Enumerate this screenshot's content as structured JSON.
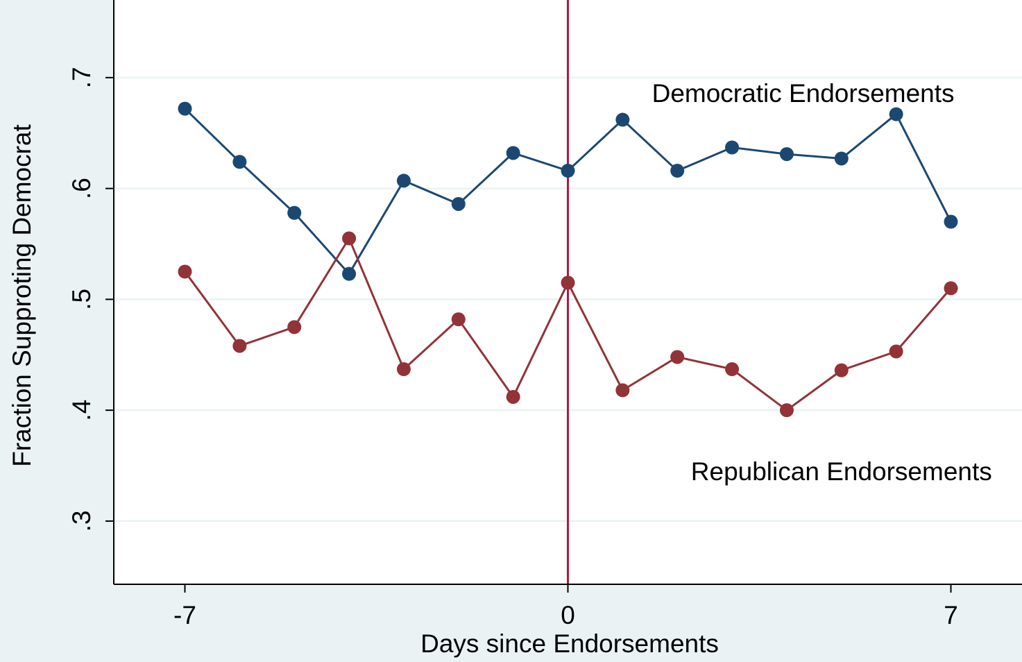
{
  "chart_data": {
    "type": "line",
    "title": "",
    "xlabel": "Days since Endorsements",
    "ylabel": "Fraction Supproting Democrat",
    "xlim": [
      -8.3,
      8.3
    ],
    "ylim": [
      0.243,
      0.77
    ],
    "x_ticks": [
      -7,
      0,
      7
    ],
    "x_tick_labels": [
      "-7",
      "0",
      "7"
    ],
    "y_ticks": [
      0.3,
      0.4,
      0.5,
      0.6,
      0.7
    ],
    "y_tick_labels": [
      ".3",
      ".4",
      ".5",
      ".6",
      ".7"
    ],
    "grid": true,
    "reference_line": {
      "x": 0,
      "color": "#b2193d"
    },
    "x": [
      -7,
      -6,
      -5,
      -4,
      -3,
      -2,
      -1,
      0,
      1,
      2,
      3,
      4,
      5,
      6,
      7
    ],
    "series": [
      {
        "color": "#1b4872",
        "values": [
          0.672,
          0.624,
          0.578,
          0.523,
          0.607,
          0.586,
          0.632,
          0.616,
          0.662,
          0.616,
          0.637,
          0.631,
          0.627,
          0.667,
          0.57
        ]
      },
      {
        "color": "#923338",
        "values": [
          0.525,
          0.458,
          0.475,
          0.555,
          0.437,
          0.482,
          0.412,
          0.515,
          0.418,
          0.448,
          0.437,
          0.4,
          0.436,
          0.453,
          0.51
        ]
      }
    ],
    "annotations": [
      {
        "text": "Democratic Endorsements",
        "x": 4.3,
        "y": 0.678
      },
      {
        "text": "Republican Endorsements",
        "x": 5.0,
        "y": 0.337
      }
    ]
  },
  "colors": {
    "background": "#eaf2f3",
    "plot_background": "#ffffff",
    "grid": "#eaf2f3"
  }
}
